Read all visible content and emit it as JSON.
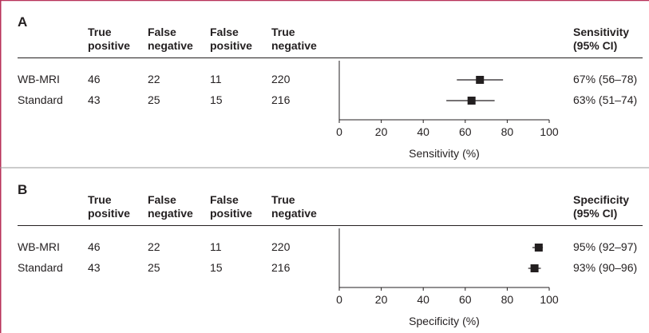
{
  "chart_data": [
    {
      "type": "forest",
      "panel": "A",
      "columns": [
        "True positive",
        "False negative",
        "False positive",
        "True negative"
      ],
      "stat_header": "Sensitivity (95% CI)",
      "categories": [
        "WB-MRI",
        "Standard"
      ],
      "table": [
        [
          46,
          22,
          11,
          220
        ],
        [
          43,
          25,
          15,
          216
        ]
      ],
      "values": [
        67,
        63
      ],
      "ci_low": [
        56,
        51
      ],
      "ci_high": [
        78,
        74
      ],
      "value_labels": [
        "67% (56–78)",
        "63% (51–74)"
      ],
      "color": "#231f20",
      "xlim": [
        0,
        100
      ],
      "xticks": [
        0,
        20,
        40,
        60,
        80,
        100
      ],
      "xlabel": "Sensitivity (%)"
    },
    {
      "type": "forest",
      "panel": "B",
      "columns": [
        "True positive",
        "False negative",
        "False positive",
        "True negative"
      ],
      "stat_header": "Specificity (95% CI)",
      "categories": [
        "WB-MRI",
        "Standard"
      ],
      "table": [
        [
          46,
          22,
          11,
          220
        ],
        [
          43,
          25,
          15,
          216
        ]
      ],
      "values": [
        95,
        93
      ],
      "ci_low": [
        92,
        90
      ],
      "ci_high": [
        97,
        96
      ],
      "value_labels": [
        "95% (92–97)",
        "93% (90–96)"
      ],
      "color": "#231f20",
      "xlim": [
        0,
        100
      ],
      "xticks": [
        0,
        20,
        40,
        60,
        80,
        100
      ],
      "xlabel": "Specificity (%)"
    }
  ]
}
